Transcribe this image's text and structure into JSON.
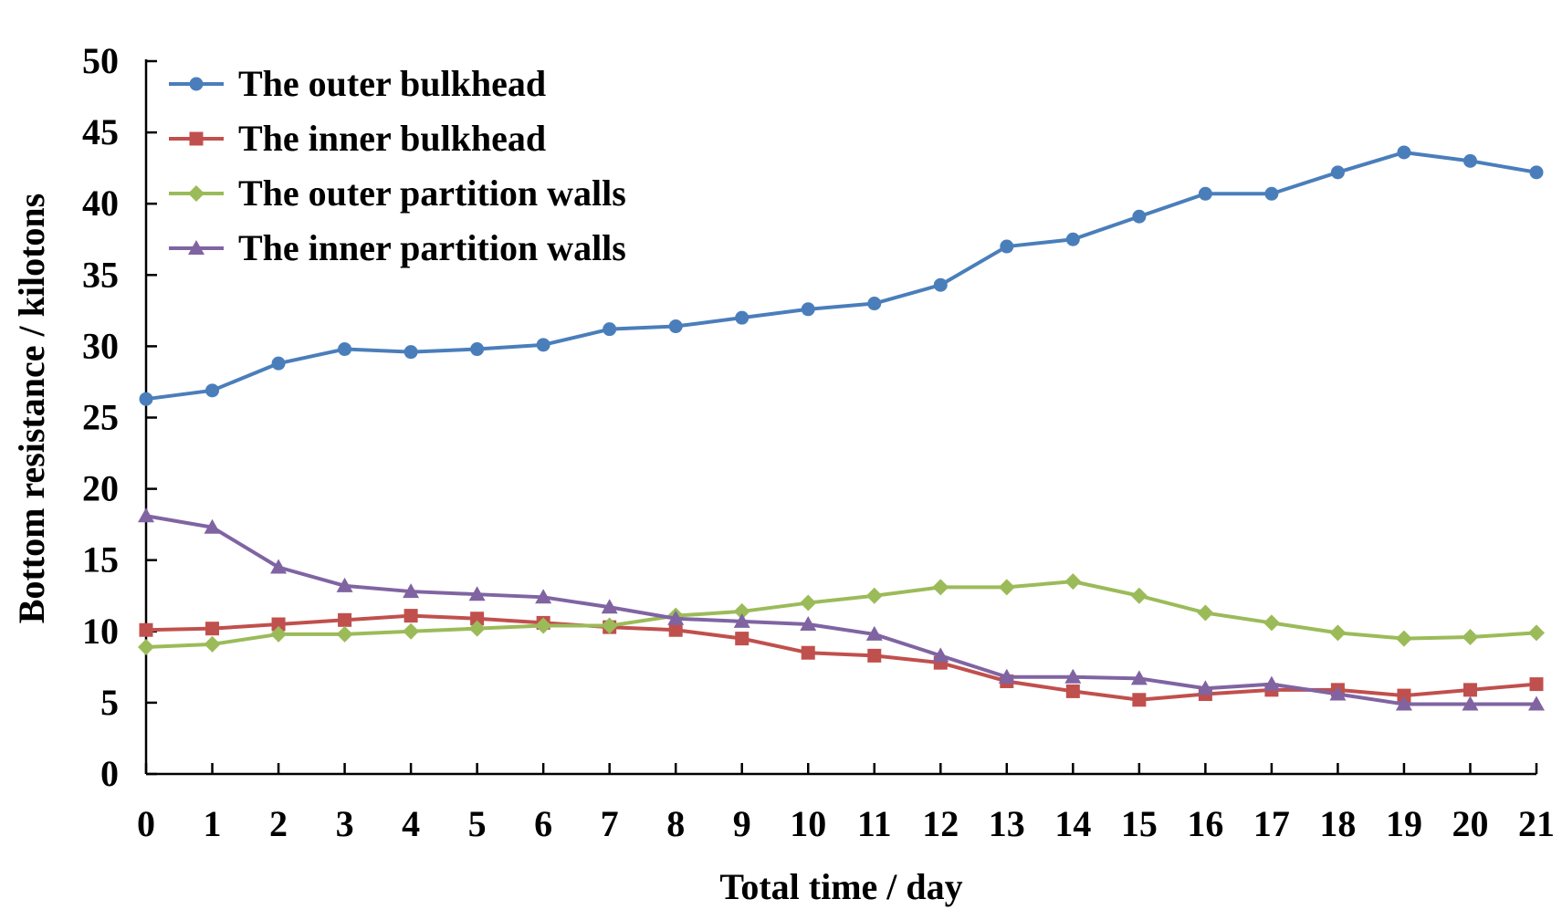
{
  "chart_data": {
    "type": "line",
    "title": "",
    "xlabel": "Total time / day",
    "ylabel": "Bottom resistance / kilotons",
    "x": [
      0,
      1,
      2,
      3,
      4,
      5,
      6,
      7,
      8,
      9,
      10,
      11,
      12,
      13,
      14,
      15,
      16,
      17,
      18,
      19,
      20,
      21
    ],
    "xticks": [
      "0",
      "1",
      "2",
      "3",
      "4",
      "5",
      "6",
      "7",
      "8",
      "9",
      "10",
      "11",
      "12",
      "13",
      "14",
      "15",
      "16",
      "17",
      "18",
      "19",
      "20",
      "21"
    ],
    "ylim": [
      0,
      50
    ],
    "yticks": [
      "0",
      "5",
      "10",
      "15",
      "20",
      "25",
      "30",
      "35",
      "40",
      "45",
      "50"
    ],
    "grid": false,
    "legend_position": "top-left",
    "series": [
      {
        "name": "The outer bulkhead",
        "color": "#4a7ebb",
        "marker": "circle",
        "values": [
          26.3,
          26.9,
          28.8,
          29.8,
          29.6,
          29.8,
          30.1,
          31.2,
          31.4,
          32.0,
          32.6,
          33.0,
          34.3,
          37.0,
          37.5,
          39.1,
          40.7,
          40.7,
          42.2,
          43.6,
          43.0,
          42.2
        ]
      },
      {
        "name": "The inner bulkhead",
        "color": "#c0504d",
        "marker": "square",
        "values": [
          10.1,
          10.2,
          10.5,
          10.8,
          11.1,
          10.9,
          10.6,
          10.3,
          10.1,
          9.5,
          8.5,
          8.3,
          7.8,
          6.5,
          5.8,
          5.2,
          5.6,
          5.9,
          5.9,
          5.5,
          5.9,
          6.3
        ]
      },
      {
        "name": "The outer partition walls",
        "color": "#9bbb59",
        "marker": "diamond",
        "values": [
          8.9,
          9.1,
          9.8,
          9.8,
          10.0,
          10.2,
          10.4,
          10.4,
          11.1,
          11.4,
          12.0,
          12.5,
          13.1,
          13.1,
          13.5,
          12.5,
          11.3,
          10.6,
          9.9,
          9.5,
          9.6,
          9.9
        ]
      },
      {
        "name": "The inner partition walls",
        "color": "#8064a2",
        "marker": "triangle",
        "values": [
          18.1,
          17.3,
          14.5,
          13.2,
          12.8,
          12.6,
          12.4,
          11.7,
          10.9,
          10.7,
          10.5,
          9.8,
          8.3,
          6.8,
          6.8,
          6.7,
          6.0,
          6.3,
          5.6,
          4.9,
          4.9,
          4.9
        ]
      }
    ]
  }
}
